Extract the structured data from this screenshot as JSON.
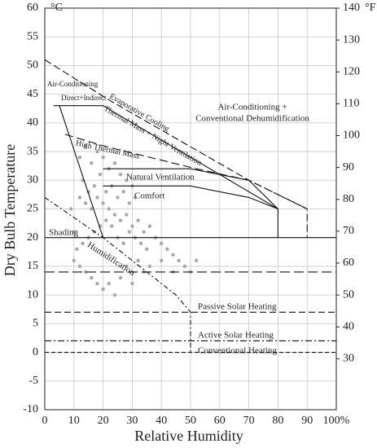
{
  "chart_data": {
    "type": "scatter",
    "xlabel": "Relative Humidity",
    "ylabel": "Dry Bulb Temperature",
    "y_unit": "°C",
    "y2_unit": "°F",
    "xlim": [
      0,
      100
    ],
    "xticks": [
      0,
      10,
      20,
      30,
      40,
      50,
      60,
      70,
      80,
      90,
      {
        "value": 100,
        "label": "100%"
      }
    ],
    "ylim": [
      -10,
      60
    ],
    "yticks": [
      -10,
      -5,
      0,
      5,
      10,
      15,
      20,
      25,
      30,
      35,
      40,
      45,
      50,
      55,
      60
    ],
    "y2lim": [
      14,
      140
    ],
    "y2ticks": [
      30,
      40,
      50,
      60,
      70,
      80,
      90,
      100,
      110,
      120,
      130,
      140
    ],
    "grid": true,
    "color": "#a8a8a8",
    "x": [
      12,
      14,
      16,
      18,
      20,
      22,
      24,
      26,
      28,
      30,
      13,
      15,
      17,
      19,
      21,
      23,
      25,
      27,
      29,
      31,
      12,
      14,
      16,
      18,
      20,
      22,
      24,
      26,
      28,
      30,
      32,
      34,
      36,
      38,
      40,
      42,
      44,
      46,
      48,
      50,
      35,
      33,
      31,
      29,
      27,
      25,
      23,
      21,
      19,
      17,
      15,
      13,
      11,
      10,
      12,
      14,
      16,
      18,
      20,
      22,
      24,
      26,
      28,
      30,
      32,
      34,
      36,
      40,
      44,
      52,
      10,
      9
    ],
    "y": [
      34,
      36,
      33,
      35,
      34,
      32,
      33,
      31,
      30,
      29,
      30,
      28,
      29,
      31,
      28,
      29,
      27,
      28,
      26,
      27,
      27,
      26,
      25,
      27,
      26,
      25,
      24,
      23,
      24,
      22,
      23,
      21,
      22,
      20,
      19,
      18,
      17,
      16,
      15,
      14,
      18,
      19,
      20,
      21,
      19,
      20,
      22,
      23,
      22,
      21,
      20,
      19,
      18,
      16,
      15,
      14,
      13,
      12,
      11,
      12,
      10,
      13,
      15,
      12,
      16,
      14,
      15,
      16,
      14,
      16,
      21,
      25
    ],
    "zones": [
      {
        "x": [
          0,
          22,
          70,
          90,
          90
        ],
        "y": [
          51,
          44,
          30,
          25,
          20
        ],
        "dash": "9 4"
      },
      {
        "x": [
          3,
          20,
          80,
          80
        ],
        "y": [
          43,
          43,
          25,
          20
        ],
        "dash": "none"
      },
      {
        "x": [
          7,
          20,
          52,
          70,
          90
        ],
        "y": [
          38,
          36,
          32,
          30,
          25
        ],
        "dash": "10 5"
      },
      {
        "x": [
          20,
          50,
          70,
          80
        ],
        "y": [
          32,
          32,
          30,
          25
        ],
        "dash": "none"
      },
      {
        "x": [
          20,
          50,
          70,
          80
        ],
        "y": [
          29,
          29,
          27,
          25
        ],
        "dash": "none"
      },
      {
        "x": [
          5,
          20
        ],
        "y": [
          43,
          20
        ],
        "dash": "none"
      },
      {
        "x": [
          0,
          100
        ],
        "y": [
          20,
          20
        ],
        "dash": "none"
      },
      {
        "x": [
          0,
          20,
          45,
          50,
          50
        ],
        "y": [
          27,
          20,
          10,
          7,
          0
        ],
        "dash": "6 3 2 3"
      },
      {
        "x": [
          0,
          100
        ],
        "y": [
          14,
          14
        ],
        "dash": "12 5"
      },
      {
        "x": [
          0,
          100
        ],
        "y": [
          7,
          7
        ],
        "dash": "8 4"
      },
      {
        "x": [
          0,
          100
        ],
        "y": [
          2,
          2
        ],
        "dash": "8 3 2 3"
      },
      {
        "x": [
          0,
          100
        ],
        "y": [
          0,
          0
        ],
        "dash": "5 3"
      }
    ],
    "annotations": [
      "Air-Conditioning",
      "Direct+Indirect",
      "Evaporative Cooling",
      "Thermal Mass + Night Ventilation",
      "Air-Conditioning +",
      "Conventional Dehumidification",
      "High Thermal Mass",
      "Natural Ventilation",
      "Comfort",
      "Shading",
      "Humidification",
      "Passive Solar Heating",
      "Active Solar Heating",
      "Conventional Heating"
    ]
  }
}
